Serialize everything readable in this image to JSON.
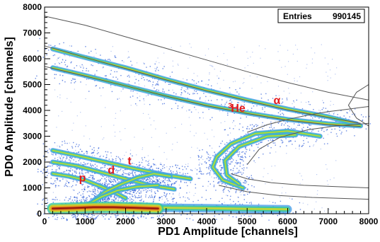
{
  "chart_data": {
    "type": "heatmap",
    "xlabel": "PD1 Amplitude [channels]",
    "ylabel": "PD0 Amplitude [channels]",
    "xlim": [
      0,
      8000
    ],
    "ylim": [
      0,
      8000
    ],
    "xticks": [
      "0",
      "1000",
      "2000",
      "3000",
      "4000",
      "5000",
      "6000",
      "7000",
      "8000"
    ],
    "yticks": [
      "0",
      "1000",
      "2000",
      "3000",
      "4000",
      "5000",
      "6000",
      "7000",
      "8000"
    ],
    "grid": false,
    "stats_box": {
      "label": "Entries",
      "value": "990145",
      "position": "top-right"
    },
    "annotations": [
      {
        "text": "α",
        "x": 5650,
        "y": 4250,
        "color": "#e31a1c"
      },
      {
        "text": "3",
        "x": 4530,
        "y": 4100,
        "color": "#e31a1c",
        "superscript": true
      },
      {
        "text": "He",
        "x": 4600,
        "y": 3950,
        "color": "#e31a1c"
      },
      {
        "text": "t",
        "x": 2050,
        "y": 1900,
        "color": "#e31a1c"
      },
      {
        "text": "d",
        "x": 1560,
        "y": 1550,
        "color": "#e31a1c"
      },
      {
        "text": "p",
        "x": 850,
        "y": 1250,
        "color": "#e31a1c"
      }
    ],
    "bands": [
      {
        "name": "alpha-upper",
        "points": [
          [
            200,
            6380
          ],
          [
            1000,
            6050
          ],
          [
            2000,
            5650
          ],
          [
            3000,
            5200
          ],
          [
            4000,
            4780
          ],
          [
            5000,
            4400
          ],
          [
            6000,
            4050
          ],
          [
            7000,
            3750
          ],
          [
            7700,
            3480
          ]
        ]
      },
      {
        "name": "he3",
        "points": [
          [
            200,
            5650
          ],
          [
            1000,
            5350
          ],
          [
            2000,
            4950
          ],
          [
            3000,
            4560
          ],
          [
            4000,
            4200
          ],
          [
            5000,
            3900
          ],
          [
            6000,
            3650
          ],
          [
            7000,
            3480
          ],
          [
            7800,
            3400
          ]
        ]
      },
      {
        "name": "he3-punch-outer",
        "points": [
          [
            6800,
            3000
          ],
          [
            6000,
            3200
          ],
          [
            5200,
            3100
          ],
          [
            4600,
            2700
          ],
          [
            4250,
            2200
          ],
          [
            4150,
            1800
          ],
          [
            4400,
            1300
          ],
          [
            4900,
            1000
          ]
        ]
      },
      {
        "name": "he3-punch-inner",
        "points": [
          [
            6200,
            3050
          ],
          [
            5500,
            3000
          ],
          [
            4800,
            2600
          ],
          [
            4450,
            2050
          ],
          [
            4500,
            1500
          ],
          [
            4800,
            1150
          ]
        ]
      },
      {
        "name": "triton",
        "points": [
          [
            200,
            2450
          ],
          [
            800,
            2250
          ],
          [
            1500,
            2000
          ],
          [
            2200,
            1750
          ],
          [
            3000,
            1500
          ],
          [
            3600,
            1350
          ]
        ]
      },
      {
        "name": "deuteron",
        "points": [
          [
            200,
            2000
          ],
          [
            800,
            1850
          ],
          [
            1400,
            1600
          ],
          [
            2000,
            1350
          ],
          [
            2600,
            1100
          ],
          [
            3200,
            950
          ]
        ]
      },
      {
        "name": "proton",
        "points": [
          [
            200,
            1550
          ],
          [
            600,
            1450
          ],
          [
            1000,
            1300
          ],
          [
            1400,
            1050
          ],
          [
            1700,
            850
          ],
          [
            2000,
            600
          ]
        ]
      },
      {
        "name": "punch-curve-1",
        "points": [
          [
            1200,
            500
          ],
          [
            1500,
            850
          ],
          [
            1900,
            1150
          ],
          [
            2300,
            1400
          ],
          [
            2700,
            1550
          ],
          [
            3100,
            1450
          ]
        ]
      },
      {
        "name": "punch-curve-2",
        "points": [
          [
            1000,
            300
          ],
          [
            1400,
            650
          ],
          [
            1800,
            900
          ],
          [
            2300,
            1050
          ],
          [
            2800,
            1100
          ]
        ]
      },
      {
        "name": "low-band",
        "points": [
          [
            200,
            200
          ],
          [
            1000,
            250
          ],
          [
            2000,
            250
          ],
          [
            3000,
            230
          ],
          [
            4000,
            210
          ],
          [
            5000,
            190
          ],
          [
            6000,
            170
          ]
        ]
      },
      {
        "name": "hot-core",
        "points": [
          [
            200,
            200
          ],
          [
            700,
            220
          ],
          [
            1200,
            250
          ],
          [
            1700,
            250
          ],
          [
            2200,
            230
          ],
          [
            2800,
            200
          ]
        ]
      }
    ],
    "reference_curves": [
      {
        "name": "upper-line",
        "points": [
          [
            0,
            7650
          ],
          [
            1000,
            7300
          ],
          [
            2000,
            6850
          ],
          [
            3000,
            6400
          ],
          [
            4000,
            5950
          ],
          [
            5000,
            5500
          ],
          [
            6000,
            5080
          ],
          [
            7000,
            4700
          ],
          [
            8000,
            4400
          ]
        ]
      },
      {
        "name": "alpha-line",
        "points": [
          [
            0,
            6500
          ],
          [
            1000,
            6050
          ],
          [
            2000,
            5620
          ],
          [
            3000,
            5180
          ],
          [
            4000,
            4760
          ],
          [
            5000,
            4380
          ],
          [
            6000,
            4020
          ],
          [
            7000,
            3730
          ],
          [
            7800,
            3500
          ]
        ]
      },
      {
        "name": "he3-line",
        "points": [
          [
            0,
            5700
          ],
          [
            1000,
            5330
          ],
          [
            2000,
            4950
          ],
          [
            3000,
            4550
          ],
          [
            4000,
            4180
          ],
          [
            5000,
            3880
          ],
          [
            6000,
            3620
          ],
          [
            7000,
            3450
          ],
          [
            7800,
            3380
          ]
        ]
      },
      {
        "name": "upper-branch",
        "points": [
          [
            5000,
            3150
          ],
          [
            5500,
            3450
          ],
          [
            6000,
            3650
          ],
          [
            6500,
            3820
          ],
          [
            7000,
            3950
          ],
          [
            7500,
            4050
          ],
          [
            8000,
            4150
          ]
        ]
      },
      {
        "name": "mid-branch",
        "points": [
          [
            5000,
            1900
          ],
          [
            5300,
            2500
          ],
          [
            5800,
            2950
          ],
          [
            6500,
            3250
          ],
          [
            7200,
            3400
          ],
          [
            8000,
            3500
          ]
        ]
      },
      {
        "name": "lower-branch",
        "points": [
          [
            4600,
            1550
          ],
          [
            5000,
            1350
          ],
          [
            5600,
            1200
          ],
          [
            6400,
            1100
          ],
          [
            7200,
            1050
          ],
          [
            8000,
            1000
          ]
        ]
      },
      {
        "name": "bottom-branch",
        "points": [
          [
            4300,
            1100
          ],
          [
            5000,
            850
          ],
          [
            5800,
            700
          ],
          [
            6600,
            630
          ],
          [
            7400,
            590
          ],
          [
            8000,
            560
          ]
        ]
      },
      {
        "name": "right-arc",
        "points": [
          [
            8000,
            5000
          ],
          [
            7700,
            4700
          ],
          [
            7500,
            4200
          ],
          [
            7700,
            3700
          ],
          [
            8000,
            3400
          ]
        ]
      }
    ],
    "colors": {
      "sparse": "#2c5bd8",
      "low": "#4a9fe8",
      "mid": "#38c8a0",
      "high": "#c8d830",
      "peak": "#e8a020",
      "max": "#a02010",
      "curve": "#555555",
      "annotation": "#e31a1c"
    }
  }
}
